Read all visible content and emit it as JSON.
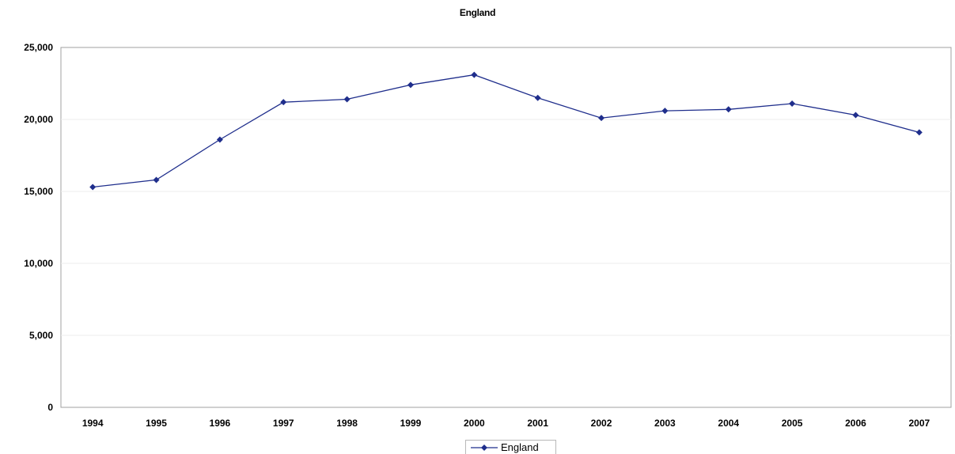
{
  "chart_data": {
    "type": "line",
    "title": "England",
    "xlabel": "",
    "ylabel": "",
    "categories": [
      "1994",
      "1995",
      "1996",
      "1997",
      "1998",
      "1999",
      "2000",
      "2001",
      "2002",
      "2003",
      "2004",
      "2005",
      "2006",
      "2007"
    ],
    "yticks": [
      "0",
      "5,000",
      "10,000",
      "15,000",
      "20,000",
      "25,000"
    ],
    "ylim": [
      0,
      25000
    ],
    "grid": true,
    "legend_position": "bottom",
    "series": [
      {
        "name": "England",
        "color": "#1f2e8c",
        "marker": "diamond",
        "values": [
          15300,
          15800,
          18600,
          21200,
          21400,
          22400,
          23100,
          21500,
          20100,
          20600,
          20700,
          21100,
          20300,
          19100
        ]
      }
    ]
  }
}
